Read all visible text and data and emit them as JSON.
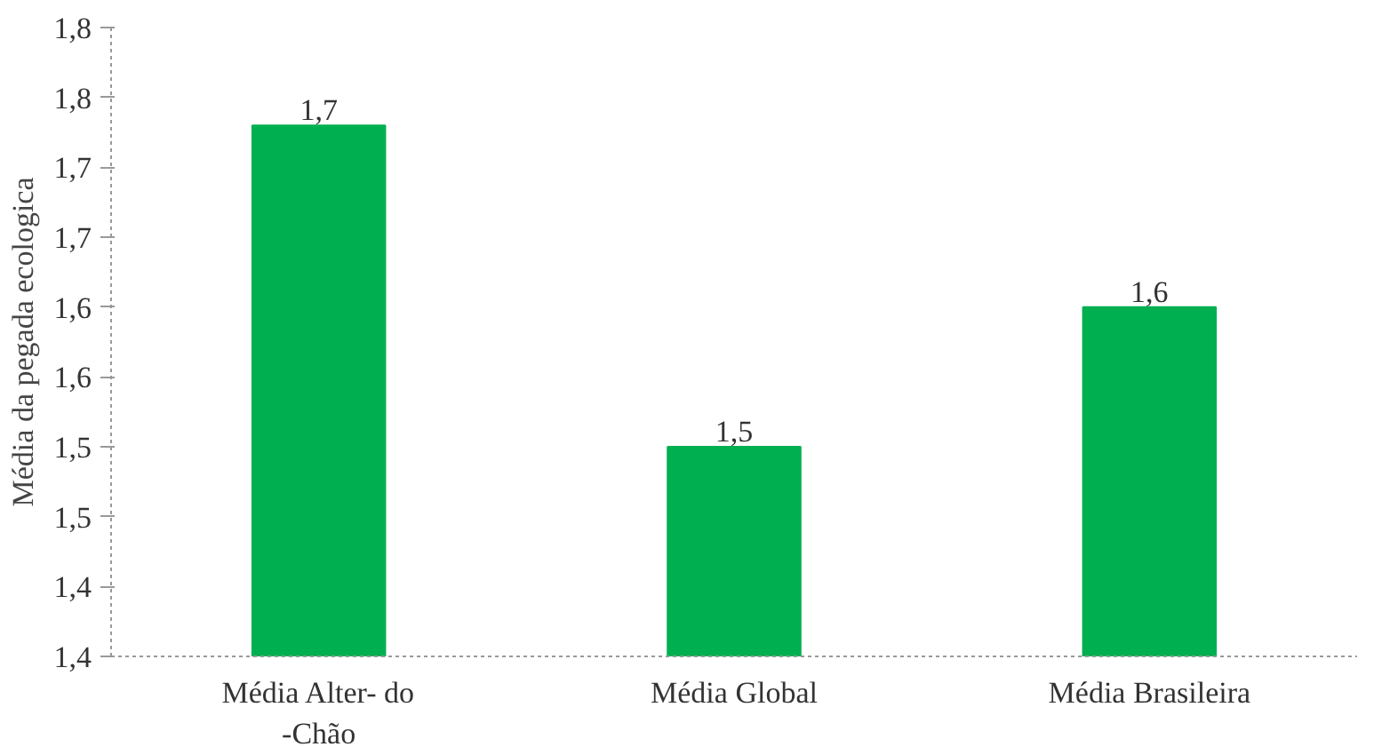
{
  "chart_data": {
    "type": "bar",
    "ylabel": "Média da pegada ecologica",
    "categories": [
      "Média Alter- do\n-Chão",
      "Média Global",
      "Média Brasileira"
    ],
    "values": [
      1.73,
      1.5,
      1.6
    ],
    "color": "#00b050",
    "value_labels": [
      "1,7",
      "1,5",
      "1,6"
    ],
    "ylim": [
      1.35,
      1.8
    ],
    "yticks": [
      {
        "value": 1.35,
        "label": "1,4"
      },
      {
        "value": 1.4,
        "label": "1,4"
      },
      {
        "value": 1.45,
        "label": "1,5"
      },
      {
        "value": 1.5,
        "label": "1,5"
      },
      {
        "value": 1.55,
        "label": "1,6"
      },
      {
        "value": 1.6,
        "label": "1,6"
      },
      {
        "value": 1.65,
        "label": "1,7"
      },
      {
        "value": 1.7,
        "label": "1,7"
      },
      {
        "value": 1.75,
        "label": "1,8"
      },
      {
        "value": 1.8,
        "label": "1,8"
      }
    ],
    "grid": false
  }
}
